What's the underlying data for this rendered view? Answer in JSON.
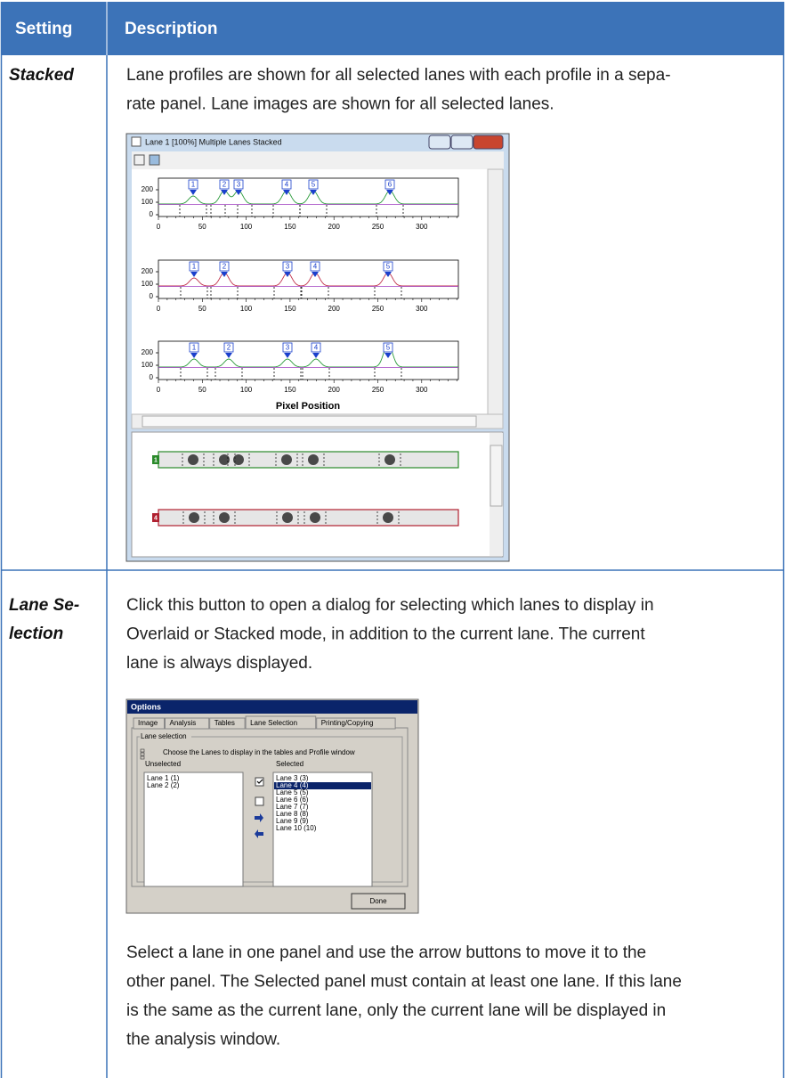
{
  "table": {
    "header": [
      "Setting",
      "Description"
    ],
    "rows": [
      {
        "setting": [
          "Stacked"
        ],
        "description": [
          "Lane profiles are shown for all selected lanes with each profile in a sepa-",
          "rate panel. Lane images are shown for all selected lanes."
        ],
        "screenshot": {
          "title": "Lane 1 [100%] Multiple Lanes Stacked",
          "xticks": [
            "0",
            "50",
            "100",
            "150",
            "200",
            "250",
            "300"
          ],
          "yticks": [
            "200",
            "100",
            "0"
          ],
          "panels": [
            {
              "peaks": [
                "1",
                "2",
                "3",
                "4",
                "5",
                "6"
              ]
            },
            {
              "peaks": [
                "1",
                "2",
                "3",
                "4",
                "5"
              ]
            },
            {
              "peaks": [
                "1",
                "2",
                "3",
                "4",
                "5"
              ]
            }
          ],
          "xlabel": "Pixel Position",
          "lanes": [
            "1",
            "4"
          ]
        }
      },
      {
        "setting": [
          "Lane Se-",
          "lection"
        ],
        "description": [
          "Click this button to open a dialog for selecting which lanes to display in",
          "Overlaid or Stacked mode, in addition to the current lane. The current",
          "lane is always displayed."
        ],
        "dialog": {
          "title": "Options",
          "tabs": [
            "Image",
            "Analysis",
            "Tables",
            "Lane Selection",
            "Printing/Copying"
          ],
          "group": "Lane selection",
          "hint": "Choose the Lanes to display in the tables and Profile window",
          "unselected_label": "Unselected",
          "selected_label": "Selected",
          "unselected": [
            "Lane 1 (1)",
            "Lane 2 (2)"
          ],
          "selected": [
            "Lane 3 (3)",
            "Lane 4 (4)",
            "Lane 5 (5)",
            "Lane 6 (6)",
            "Lane 7 (7)",
            "Lane 8 (8)",
            "Lane 9 (9)",
            "Lane 10 (10)"
          ],
          "button": "Done"
        },
        "after": [
          "Select a lane in one panel and use the arrow buttons to move it to the",
          "other panel. The Selected panel must contain at least one lane. If this lane",
          "is the same as the current lane, only the current lane will be displayed in",
          "the analysis window."
        ]
      }
    ]
  }
}
